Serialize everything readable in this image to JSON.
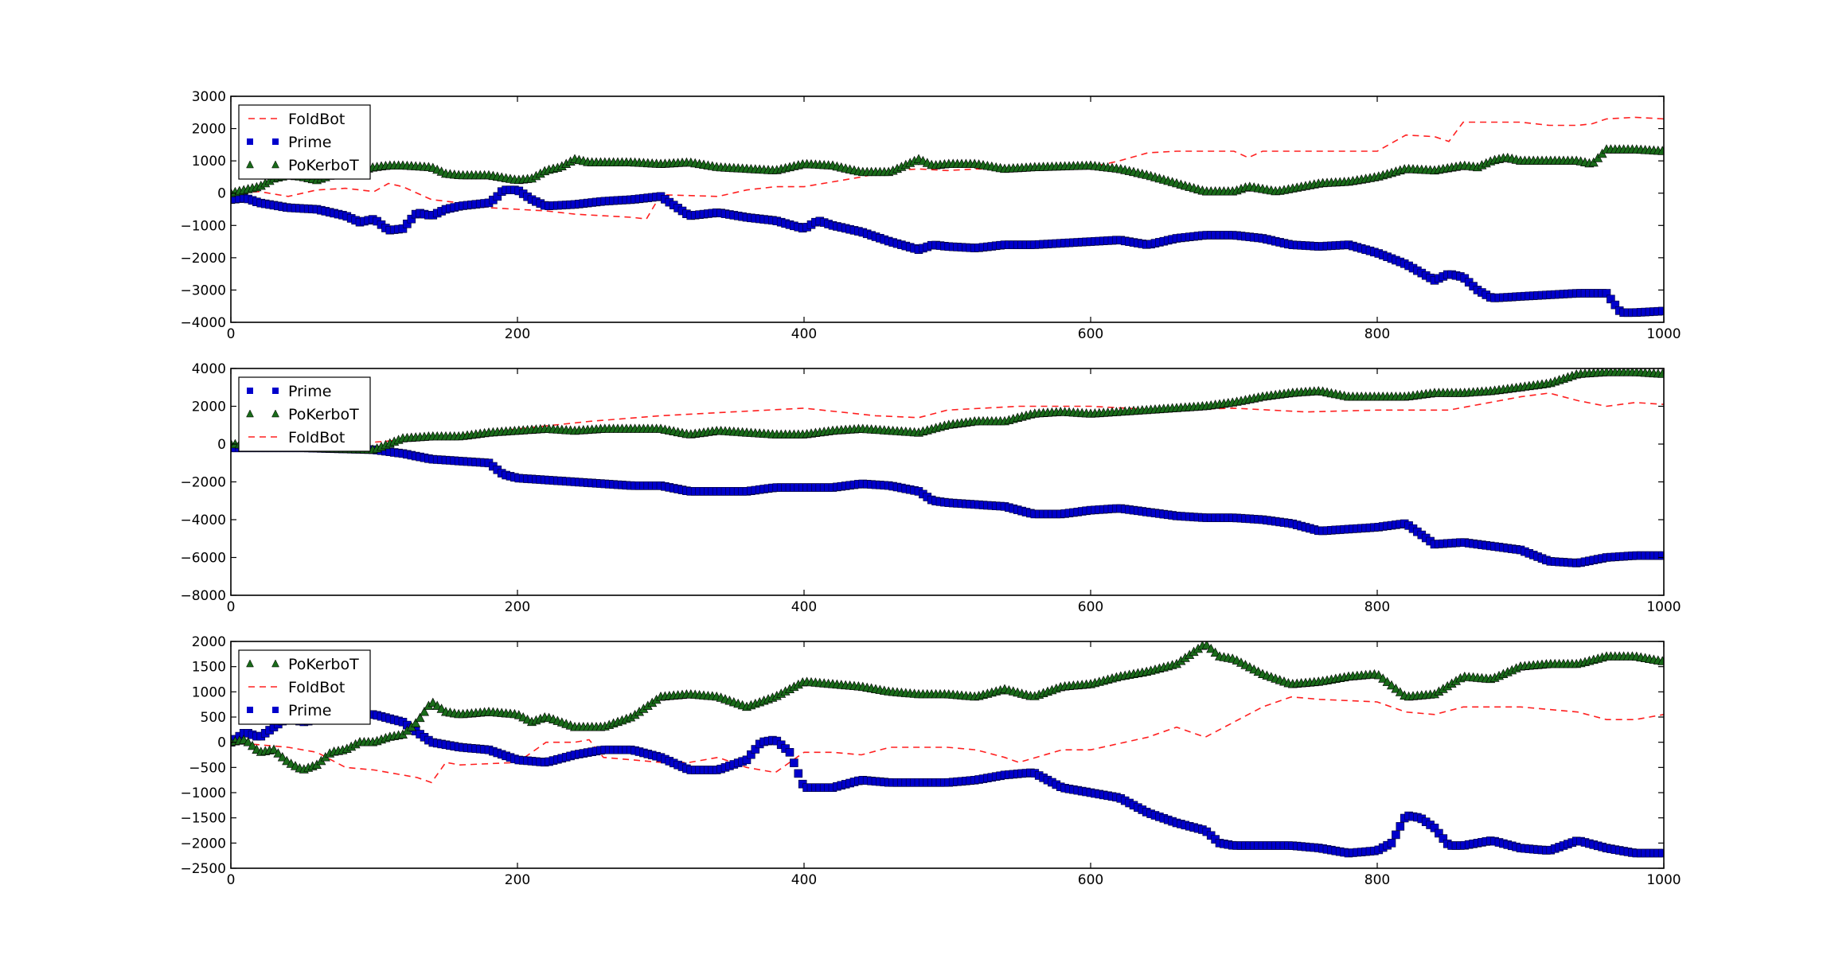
{
  "colors": {
    "FoldBot": "#ff2020",
    "Prime": "#0000cc",
    "PoKerboT": "#1a6b1a"
  },
  "chart_data": [
    {
      "type": "line",
      "title": "",
      "xlabel": "",
      "ylabel": "",
      "xlim": [
        0,
        1000
      ],
      "ylim": [
        -4000,
        3000
      ],
      "xticks": [
        0,
        200,
        400,
        600,
        800,
        1000
      ],
      "yticks": [
        -4000,
        -3000,
        -2000,
        -1000,
        0,
        1000,
        2000,
        3000
      ],
      "legend": {
        "position": "upper-left",
        "order": [
          "FoldBot",
          "Prime",
          "PoKerboT"
        ]
      },
      "series": [
        {
          "name": "FoldBot",
          "style": "dashed-line",
          "x": [
            0,
            20,
            40,
            60,
            80,
            100,
            110,
            120,
            140,
            160,
            180,
            200,
            220,
            240,
            260,
            280,
            290,
            300,
            340,
            360,
            380,
            400,
            420,
            440,
            460,
            480,
            500,
            520,
            540,
            560,
            580,
            600,
            620,
            640,
            660,
            700,
            710,
            720,
            760,
            800,
            820,
            840,
            850,
            860,
            870,
            900,
            920,
            940,
            950,
            960,
            980,
            1000
          ],
          "y": [
            0,
            50,
            -100,
            100,
            150,
            50,
            300,
            200,
            -200,
            -300,
            -450,
            -500,
            -550,
            -650,
            -700,
            -750,
            -800,
            -50,
            -100,
            100,
            200,
            200,
            350,
            500,
            700,
            750,
            700,
            750,
            750,
            750,
            750,
            800,
            1000,
            1250,
            1300,
            1300,
            1100,
            1300,
            1300,
            1300,
            1800,
            1750,
            1600,
            2200,
            2200,
            2200,
            2100,
            2100,
            2150,
            2300,
            2350,
            2300
          ]
        },
        {
          "name": "Prime",
          "style": "square-markers",
          "x": [
            0,
            10,
            20,
            40,
            60,
            80,
            90,
            100,
            110,
            120,
            130,
            140,
            150,
            160,
            170,
            180,
            185,
            190,
            200,
            210,
            220,
            240,
            260,
            280,
            300,
            310,
            320,
            340,
            360,
            380,
            400,
            410,
            420,
            440,
            460,
            480,
            490,
            500,
            520,
            540,
            560,
            600,
            620,
            640,
            660,
            680,
            700,
            720,
            740,
            760,
            780,
            800,
            820,
            840,
            850,
            860,
            870,
            880,
            900,
            920,
            940,
            960,
            970,
            980,
            1000
          ],
          "y": [
            -200,
            -150,
            -300,
            -450,
            -500,
            -700,
            -900,
            -800,
            -1150,
            -1100,
            -600,
            -700,
            -500,
            -400,
            -350,
            -300,
            -150,
            100,
            100,
            -200,
            -400,
            -350,
            -250,
            -200,
            -100,
            -400,
            -700,
            -600,
            -750,
            -850,
            -1100,
            -850,
            -1000,
            -1200,
            -1500,
            -1750,
            -1600,
            -1650,
            -1700,
            -1600,
            -1600,
            -1500,
            -1450,
            -1600,
            -1400,
            -1300,
            -1300,
            -1400,
            -1600,
            -1650,
            -1600,
            -1850,
            -2200,
            -2700,
            -2500,
            -2600,
            -3000,
            -3250,
            -3200,
            -3150,
            -3100,
            -3100,
            -3700,
            -3700,
            -3650
          ]
        },
        {
          "name": "PoKerboT",
          "style": "triangle-markers",
          "x": [
            0,
            10,
            20,
            30,
            40,
            50,
            60,
            70,
            80,
            90,
            100,
            110,
            120,
            140,
            150,
            160,
            180,
            200,
            210,
            220,
            230,
            240,
            250,
            260,
            280,
            300,
            320,
            340,
            360,
            380,
            400,
            420,
            440,
            460,
            480,
            490,
            500,
            520,
            540,
            560,
            600,
            620,
            640,
            660,
            680,
            700,
            710,
            730,
            760,
            780,
            800,
            820,
            840,
            860,
            870,
            880,
            890,
            900,
            920,
            940,
            950,
            960,
            980,
            1000
          ],
          "y": [
            0,
            100,
            200,
            450,
            550,
            500,
            400,
            550,
            600,
            700,
            800,
            850,
            850,
            800,
            600,
            550,
            550,
            400,
            450,
            700,
            800,
            1050,
            950,
            950,
            950,
            900,
            950,
            800,
            750,
            700,
            900,
            850,
            650,
            650,
            1050,
            850,
            900,
            900,
            750,
            800,
            850,
            750,
            550,
            300,
            50,
            50,
            200,
            50,
            300,
            350,
            500,
            750,
            700,
            850,
            800,
            1000,
            1100,
            1000,
            1000,
            1000,
            900,
            1350,
            1350,
            1300
          ]
        }
      ]
    },
    {
      "type": "line",
      "title": "",
      "xlabel": "",
      "ylabel": "",
      "xlim": [
        0,
        1000
      ],
      "ylim": [
        -8000,
        4000
      ],
      "xticks": [
        0,
        200,
        400,
        600,
        800,
        1000
      ],
      "yticks": [
        -8000,
        -6000,
        -4000,
        -2000,
        0,
        2000,
        4000
      ],
      "legend": {
        "position": "upper-left",
        "order": [
          "Prime",
          "PoKerboT",
          "FoldBot"
        ]
      },
      "series": [
        {
          "name": "FoldBot",
          "style": "dashed-line",
          "x": [
            0,
            50,
            100,
            150,
            200,
            250,
            300,
            350,
            400,
            450,
            480,
            500,
            550,
            600,
            650,
            700,
            750,
            800,
            850,
            900,
            920,
            940,
            960,
            980,
            1000
          ],
          "y": [
            0,
            -300,
            100,
            400,
            800,
            1200,
            1500,
            1700,
            1900,
            1500,
            1400,
            1800,
            2000,
            2000,
            1800,
            1900,
            1700,
            1800,
            1800,
            2500,
            2700,
            2300,
            2000,
            2200,
            2100
          ]
        },
        {
          "name": "Prime",
          "style": "square-markers",
          "x": [
            0,
            50,
            100,
            120,
            140,
            160,
            180,
            190,
            200,
            220,
            240,
            260,
            280,
            300,
            320,
            340,
            360,
            380,
            400,
            420,
            440,
            460,
            480,
            490,
            500,
            520,
            540,
            560,
            580,
            600,
            620,
            640,
            660,
            680,
            700,
            720,
            740,
            760,
            780,
            800,
            820,
            840,
            860,
            880,
            900,
            920,
            940,
            960,
            980,
            1000
          ],
          "y": [
            -200,
            -200,
            -300,
            -500,
            -800,
            -900,
            -1000,
            -1600,
            -1800,
            -1900,
            -2000,
            -2100,
            -2200,
            -2200,
            -2500,
            -2500,
            -2500,
            -2300,
            -2300,
            -2300,
            -2100,
            -2200,
            -2500,
            -3000,
            -3100,
            -3200,
            -3300,
            -3700,
            -3700,
            -3500,
            -3400,
            -3600,
            -3800,
            -3900,
            -3900,
            -4000,
            -4200,
            -4600,
            -4500,
            -4400,
            -4200,
            -5300,
            -5200,
            -5400,
            -5600,
            -6200,
            -6300,
            -6000,
            -5900,
            -5900
          ]
        },
        {
          "name": "PoKerboT",
          "style": "triangle-markers",
          "x": [
            0,
            50,
            100,
            120,
            140,
            160,
            180,
            200,
            220,
            240,
            260,
            280,
            300,
            320,
            340,
            360,
            380,
            400,
            420,
            440,
            460,
            480,
            500,
            520,
            540,
            560,
            580,
            600,
            620,
            640,
            660,
            680,
            700,
            720,
            740,
            760,
            780,
            800,
            820,
            840,
            860,
            880,
            900,
            920,
            940,
            960,
            980,
            1000
          ],
          "y": [
            0,
            -200,
            -300,
            300,
            400,
            400,
            600,
            700,
            800,
            700,
            800,
            800,
            800,
            500,
            700,
            600,
            500,
            500,
            700,
            800,
            700,
            600,
            1000,
            1200,
            1200,
            1600,
            1700,
            1600,
            1700,
            1800,
            1900,
            2000,
            2200,
            2500,
            2700,
            2800,
            2500,
            2500,
            2500,
            2700,
            2700,
            2800,
            3000,
            3200,
            3700,
            3800,
            3800,
            3700
          ]
        }
      ]
    },
    {
      "type": "line",
      "title": "",
      "xlabel": "",
      "ylabel": "",
      "xlim": [
        0,
        1000
      ],
      "ylim": [
        -2500,
        2000
      ],
      "xticks": [
        0,
        200,
        400,
        600,
        800,
        1000
      ],
      "yticks": [
        -2500,
        -2000,
        -1500,
        -1000,
        -500,
        0,
        500,
        1000,
        1500,
        2000
      ],
      "legend": {
        "position": "upper-left",
        "order": [
          "PoKerboT",
          "FoldBot",
          "Prime"
        ]
      },
      "series": [
        {
          "name": "FoldBot",
          "style": "dashed-line",
          "x": [
            0,
            40,
            60,
            80,
            100,
            130,
            140,
            150,
            160,
            200,
            220,
            240,
            250,
            260,
            280,
            300,
            320,
            340,
            360,
            380,
            400,
            420,
            440,
            460,
            500,
            520,
            540,
            550,
            580,
            600,
            640,
            660,
            680,
            700,
            720,
            740,
            760,
            800,
            820,
            840,
            860,
            900,
            940,
            960,
            980,
            1000
          ],
          "y": [
            0,
            -100,
            -200,
            -500,
            -550,
            -700,
            -800,
            -400,
            -450,
            -400,
            0,
            0,
            50,
            -300,
            -350,
            -400,
            -400,
            -300,
            -500,
            -600,
            -200,
            -200,
            -250,
            -100,
            -100,
            -150,
            -300,
            -400,
            -150,
            -150,
            100,
            300,
            100,
            400,
            700,
            900,
            850,
            800,
            600,
            550,
            700,
            700,
            600,
            450,
            450,
            550
          ]
        },
        {
          "name": "Prime",
          "style": "square-markers",
          "x": [
            0,
            10,
            20,
            30,
            40,
            50,
            60,
            80,
            90,
            100,
            120,
            140,
            160,
            180,
            200,
            220,
            240,
            260,
            280,
            300,
            320,
            340,
            360,
            370,
            380,
            390,
            400,
            420,
            440,
            460,
            480,
            500,
            520,
            540,
            560,
            580,
            600,
            620,
            640,
            660,
            680,
            690,
            700,
            720,
            740,
            760,
            780,
            800,
            810,
            820,
            830,
            840,
            850,
            860,
            880,
            900,
            920,
            940,
            960,
            980,
            1000
          ],
          "y": [
            0,
            200,
            100,
            300,
            500,
            400,
            450,
            500,
            550,
            550,
            400,
            0,
            -100,
            -150,
            -350,
            -400,
            -250,
            -150,
            -150,
            -300,
            -550,
            -550,
            -350,
            0,
            50,
            -200,
            -900,
            -900,
            -750,
            -800,
            -800,
            -800,
            -750,
            -650,
            -600,
            -900,
            -1000,
            -1100,
            -1400,
            -1600,
            -1750,
            -2000,
            -2050,
            -2050,
            -2050,
            -2100,
            -2200,
            -2150,
            -2000,
            -1450,
            -1500,
            -1700,
            -2050,
            -2050,
            -1950,
            -2100,
            -2150,
            -1950,
            -2100,
            -2200,
            -2200
          ]
        },
        {
          "name": "PoKerboT",
          "style": "triangle-markers",
          "x": [
            0,
            10,
            20,
            30,
            40,
            50,
            60,
            70,
            80,
            90,
            100,
            110,
            120,
            130,
            140,
            150,
            160,
            180,
            200,
            210,
            220,
            240,
            260,
            280,
            300,
            320,
            340,
            360,
            380,
            400,
            420,
            440,
            460,
            480,
            500,
            520,
            540,
            560,
            580,
            600,
            620,
            640,
            660,
            680,
            690,
            700,
            720,
            740,
            760,
            780,
            800,
            820,
            840,
            860,
            880,
            900,
            920,
            940,
            960,
            980,
            1000
          ],
          "y": [
            0,
            50,
            -200,
            -150,
            -400,
            -550,
            -450,
            -200,
            -150,
            0,
            0,
            100,
            150,
            400,
            800,
            600,
            550,
            600,
            550,
            400,
            500,
            300,
            300,
            500,
            900,
            950,
            900,
            700,
            900,
            1200,
            1150,
            1100,
            1000,
            950,
            950,
            900,
            1050,
            900,
            1100,
            1150,
            1300,
            1400,
            1550,
            1950,
            1700,
            1650,
            1350,
            1150,
            1200,
            1300,
            1350,
            900,
            950,
            1300,
            1250,
            1500,
            1550,
            1550,
            1700,
            1700,
            1600
          ]
        }
      ]
    }
  ]
}
